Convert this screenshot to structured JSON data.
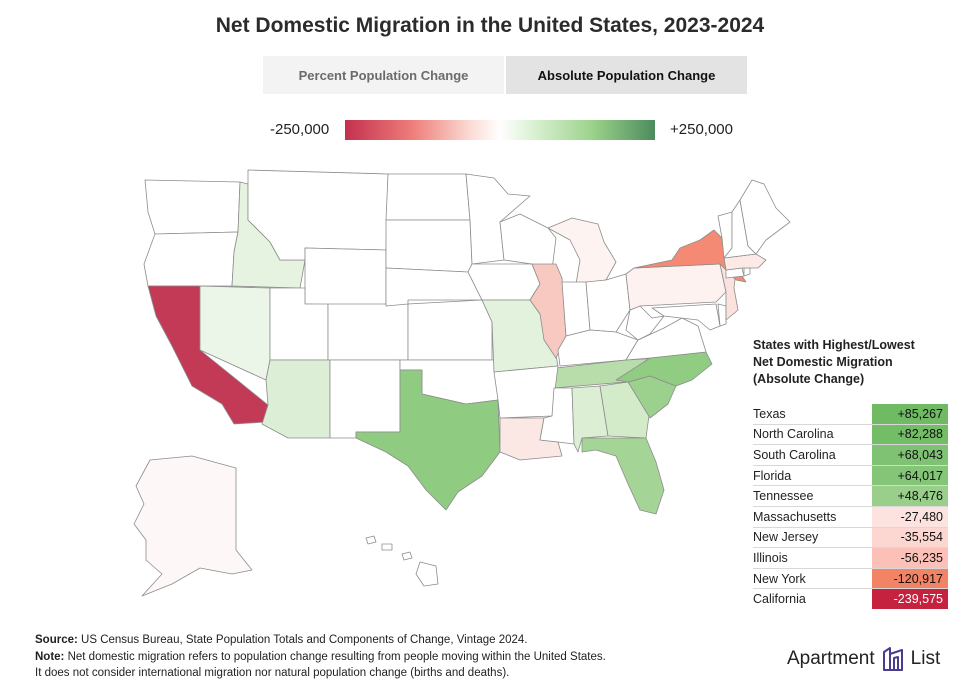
{
  "title": "Net Domestic Migration in the United States, 2023-2024",
  "tabs": [
    {
      "label": "Percent Population Change",
      "active": false
    },
    {
      "label": "Absolute Population Change",
      "active": true
    }
  ],
  "legend": {
    "min_label": "-250,000",
    "max_label": "+250,000",
    "colors": [
      "#c4304f",
      "#ee7f7a",
      "#fbd9d3",
      "#ffffff",
      "#d6efcd",
      "#9bd28a",
      "#4c8b5d"
    ]
  },
  "map": {
    "state_fills": {
      "california": "#c33a56",
      "new_york": "#f48a73",
      "illinois": "#f8c9c1",
      "new_jersey": "#fbe2de",
      "massachusetts": "#fdeae6",
      "pennsylvania": "#fdf2f0",
      "michigan": "#fdf3f1",
      "louisiana": "#fbe8e5",
      "alaska": "#fdf7f8",
      "texas": "#8fcb80",
      "north_carolina": "#90cc81",
      "south_carolina": "#9cd18d",
      "florida": "#a4d597",
      "tennessee": "#b9ddaa",
      "georgia": "#d4ebca",
      "alabama": "#dcefd4",
      "arizona": "#dceed6",
      "missouri": "#e3f2dd",
      "idaho": "#e6f3e1",
      "nevada": "#ecf6e8",
      "default": "#ffffff"
    }
  },
  "panel": {
    "title_lines": [
      "States with Highest/Lowest",
      "Net Domestic Migration",
      "(Absolute Change)"
    ],
    "rows": [
      {
        "state": "Texas",
        "value": "+85,267",
        "color": "#6fba63"
      },
      {
        "state": "North Carolina",
        "value": "+82,288",
        "color": "#73bd66"
      },
      {
        "state": "South Carolina",
        "value": "+68,043",
        "color": "#7fc273"
      },
      {
        "state": "Florida",
        "value": "+64,017",
        "color": "#84c577"
      },
      {
        "state": "Tennessee",
        "value": "+48,476",
        "color": "#99cf8b"
      },
      {
        "state": "Massachusetts",
        "value": "-27,480",
        "color": "#fde3df"
      },
      {
        "state": "New Jersey",
        "value": "-35,554",
        "color": "#fcd6d0"
      },
      {
        "state": "Illinois",
        "value": "-56,235",
        "color": "#fbc0b7"
      },
      {
        "state": "New York",
        "value": "-120,917",
        "color": "#f28365"
      },
      {
        "state": "California",
        "value": "-239,575",
        "color": "#c4223f",
        "light_text": true
      }
    ]
  },
  "footer": {
    "source_label": "Source:",
    "source_text": " US Census Bureau, State Population Totals and Components of Change, Vintage 2024.",
    "note_label": "Note:",
    "note_text": " Net domestic migration refers to population change resulting from people moving within the United States.",
    "note_text_2": "It does not consider international migration nor natural population change (births and deaths)."
  },
  "logo": {
    "word1": "Apartment",
    "word2": "List",
    "icon": "building-logo-icon"
  }
}
